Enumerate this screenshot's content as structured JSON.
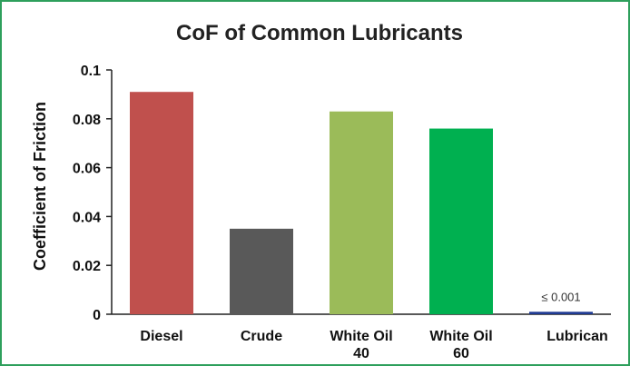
{
  "chart_data": {
    "type": "bar",
    "title": "CoF of Common Lubricants",
    "xlabel": "",
    "ylabel": "Coefficient of Friction",
    "ylim": [
      0,
      0.1
    ],
    "yticks": [
      "0",
      "0.02",
      "0.04",
      "0.06",
      "0.08",
      "0.1"
    ],
    "categories": [
      [
        "Diesel"
      ],
      [
        "Crude"
      ],
      [
        "White Oil",
        "40"
      ],
      [
        "White Oil",
        "60"
      ],
      [
        "Lubrican"
      ]
    ],
    "values": [
      0.091,
      0.035,
      0.083,
      0.076,
      0.001
    ],
    "colors": [
      "#c0504d",
      "#595959",
      "#9bbb59",
      "#00b050",
      "#1f3a93"
    ],
    "data_labels": [
      "",
      "",
      "",
      "",
      "≤ 0.001"
    ],
    "grid": false,
    "legend": "none"
  }
}
